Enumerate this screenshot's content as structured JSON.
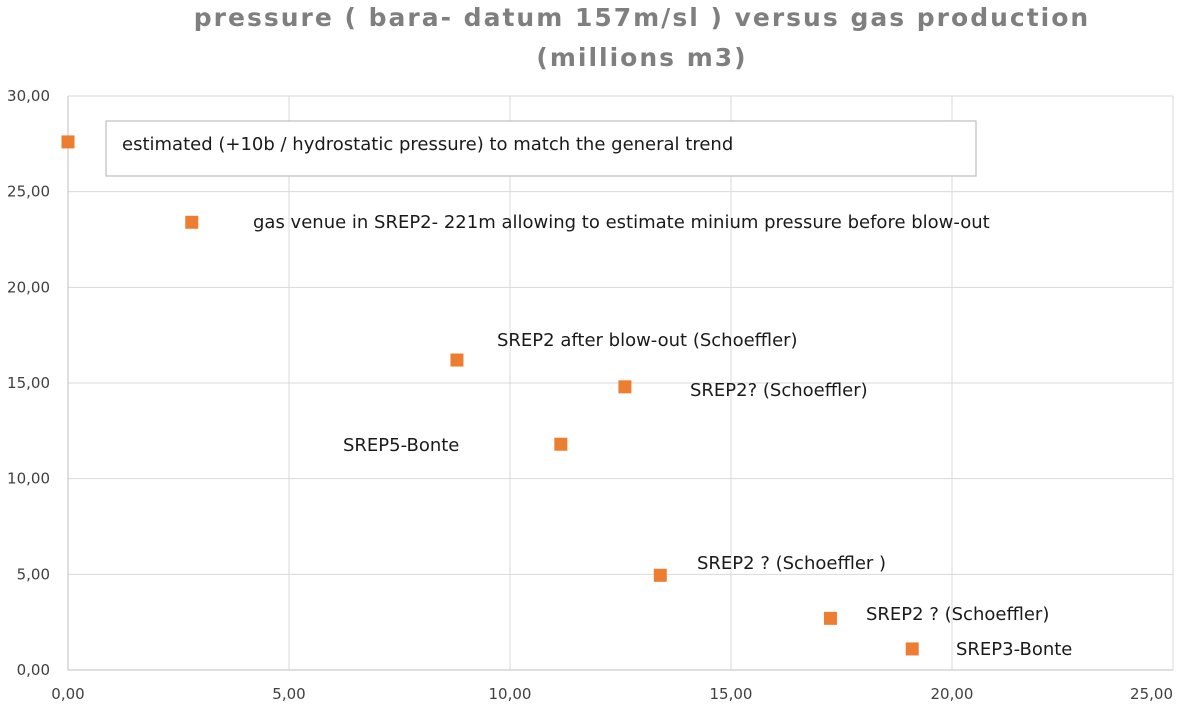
{
  "chart_data": {
    "type": "scatter",
    "title": [
      "pressure ( bara- datum 157m/sl ) versus gas production",
      "(millions m3)"
    ],
    "xlabel": "",
    "ylabel": "",
    "xlim": [
      0,
      25
    ],
    "ylim": [
      0,
      30
    ],
    "xticks": [
      0,
      5,
      10,
      15,
      20,
      25
    ],
    "yticks": [
      0,
      5,
      10,
      15,
      20,
      25,
      30
    ],
    "xtick_labels": [
      "0,00",
      "5,00",
      "10,00",
      "15,00",
      "20,00",
      "25,00"
    ],
    "ytick_labels": [
      "0,00",
      "5,00",
      "10,00",
      "15,00",
      "20,00",
      "25,00",
      "30,00"
    ],
    "grid": true,
    "marker": "square",
    "color": "#ed7d31",
    "points": [
      {
        "x": 0.0,
        "y": 27.6
      },
      {
        "x": 2.8,
        "y": 23.4
      },
      {
        "x": 8.8,
        "y": 16.2
      },
      {
        "x": 12.6,
        "y": 14.8
      },
      {
        "x": 11.15,
        "y": 11.8
      },
      {
        "x": 13.4,
        "y": 4.95
      },
      {
        "x": 17.25,
        "y": 2.7
      },
      {
        "x": 19.1,
        "y": 1.1
      }
    ],
    "annotations": [
      {
        "text": "estimated (+10b / hydrostatic pressure) to match the general trend",
        "boxed": true
      },
      {
        "text": "gas venue in SREP2- 221m allowing to estimate minium pressure before blow-out"
      },
      {
        "text": "SREP2 after blow-out (Schoeffler)"
      },
      {
        "text": "SREP2? (Schoeffler)"
      },
      {
        "text": "SREP5-Bonte"
      },
      {
        "text": "SREP2 ? (Schoeffler )"
      },
      {
        "text": "SREP2 ? (Schoeffler)"
      },
      {
        "text": "SREP3-Bonte"
      }
    ]
  }
}
